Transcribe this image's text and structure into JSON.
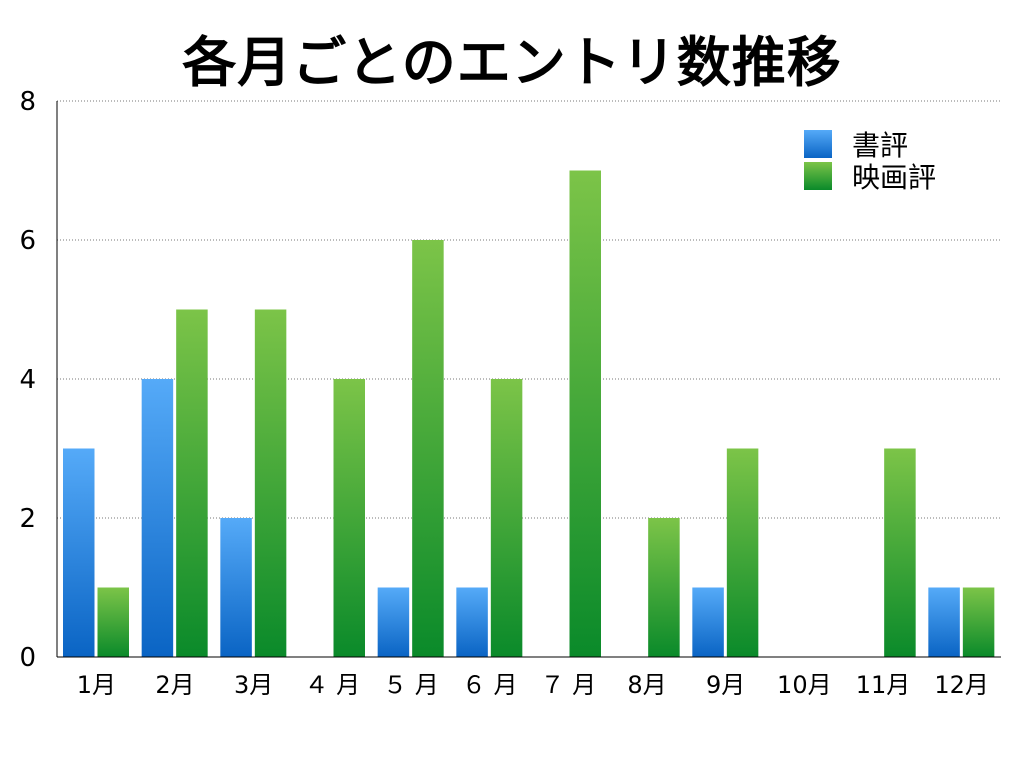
{
  "title": "各月ごとのエントリ数推移",
  "chart_data": {
    "type": "bar",
    "title": "各月ごとのエントリ数推移",
    "categories": [
      "1月",
      "2月",
      "3月",
      "４ 月",
      "５ 月",
      "６ 月",
      "７ 月",
      "8月",
      "9月",
      "10月",
      "11月",
      "12月"
    ],
    "series": [
      {
        "name": "書評",
        "values": [
          3,
          4,
          2,
          0,
          1,
          1,
          0,
          0,
          1,
          0,
          0,
          1
        ],
        "color_top": "#55aaf8",
        "color_bottom": "#0a64c4"
      },
      {
        "name": "映画評",
        "values": [
          1,
          5,
          5,
          4,
          6,
          4,
          7,
          2,
          3,
          0,
          3,
          1
        ],
        "color_top": "#7cc448",
        "color_bottom": "#0a8a2a"
      }
    ],
    "ylim": [
      0,
      8
    ],
    "yticks": [
      0,
      2,
      4,
      6,
      8
    ],
    "xlabel": "",
    "ylabel": "",
    "grid": "horizontal dotted",
    "legend": "top-right"
  }
}
